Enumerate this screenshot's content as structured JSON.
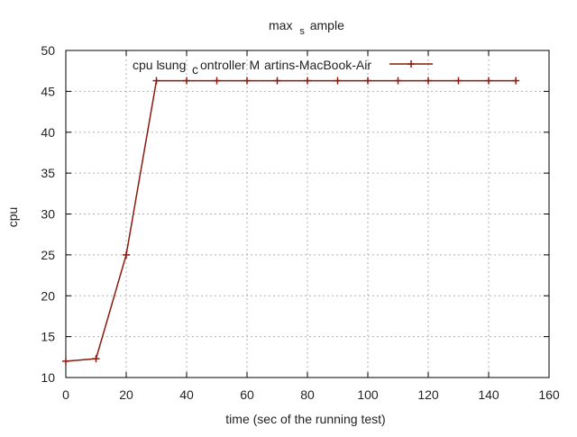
{
  "chart_data": {
    "type": "line",
    "title": {
      "prefix": "max",
      "subscript": "s",
      "suffix": "ample"
    },
    "xlabel": "time (sec of the running test)",
    "ylabel": "cpu",
    "xlim": [
      0,
      160
    ],
    "ylim": [
      10,
      50
    ],
    "x_ticks": [
      0,
      20,
      40,
      60,
      80,
      100,
      120,
      140,
      160
    ],
    "y_ticks": [
      10,
      15,
      20,
      25,
      30,
      35,
      40,
      45,
      50
    ],
    "grid": true,
    "legend_position": "top-right",
    "series": [
      {
        "name": "cpu l",
        "legend_label": {
          "part1": "cpu l",
          "part2": "sung",
          "subscript": "c",
          "part3": "ontroller M",
          "part4": "artins-MacBook-Air"
        },
        "color": "#8b1a0e",
        "marker": "plus",
        "x": [
          0,
          10,
          20,
          30,
          40,
          50,
          60,
          70,
          80,
          90,
          100,
          110,
          120,
          130,
          140,
          149
        ],
        "y": [
          12.0,
          12.3,
          25.0,
          46.3,
          46.3,
          46.3,
          46.3,
          46.3,
          46.3,
          46.3,
          46.3,
          46.3,
          46.3,
          46.3,
          46.3,
          46.3
        ]
      }
    ]
  },
  "colors": {
    "axis": "#000000",
    "grid": "#b0b0b0",
    "series": "#8b1a0e",
    "text": "#222222"
  }
}
